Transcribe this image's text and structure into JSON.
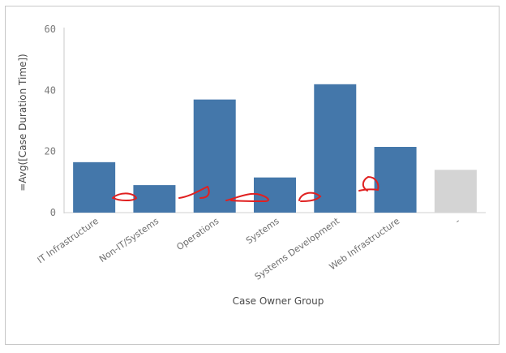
{
  "chart_data": {
    "type": "bar",
    "xlabel": "Case Owner Group",
    "ylabel": "=Avg([Case Duration Time])",
    "ylim": [
      0,
      60
    ],
    "y_ticks": [
      "0",
      "20",
      "40",
      "60"
    ],
    "y_tick_values": [
      0,
      20,
      40,
      60
    ],
    "categories": [
      "IT Infrastructure",
      "Non-IT/Systems",
      "Operations",
      "Systems",
      "Systems Development",
      "Web Infrastructure",
      "-"
    ],
    "values": [
      16.5,
      9,
      37,
      11.5,
      42,
      21.5,
      14
    ],
    "bar_colors": [
      "#4477aa",
      "#4477aa",
      "#4477aa",
      "#4477aa",
      "#4477aa",
      "#4477aa",
      "#d4d4d4"
    ],
    "grid": false,
    "legend": "none",
    "annotation": "red hand-drawn scribbles near bar bases"
  }
}
